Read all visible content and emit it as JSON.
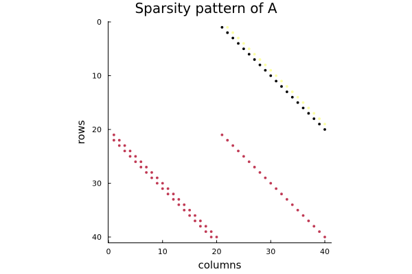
{
  "chart_data": {
    "type": "scatter",
    "title": "Sparsity pattern of A",
    "xlabel": "columns",
    "ylabel": "rows",
    "xlim": [
      0,
      41
    ],
    "ylim": [
      41,
      0
    ],
    "y_inverted": true,
    "xticks": [
      0,
      10,
      20,
      30,
      40
    ],
    "yticks": [
      0,
      10,
      20,
      30,
      40
    ],
    "grid": false,
    "legend": null,
    "series": [
      {
        "name": "block-upper-right-diagonal",
        "color": "#000000",
        "description": "entries (k, 20+k) for k = 1..20",
        "points": [
          [
            1,
            21
          ],
          [
            2,
            22
          ],
          [
            3,
            23
          ],
          [
            4,
            24
          ],
          [
            5,
            25
          ],
          [
            6,
            26
          ],
          [
            7,
            27
          ],
          [
            8,
            28
          ],
          [
            9,
            29
          ],
          [
            10,
            30
          ],
          [
            11,
            31
          ],
          [
            12,
            32
          ],
          [
            13,
            33
          ],
          [
            14,
            34
          ],
          [
            15,
            35
          ],
          [
            16,
            36
          ],
          [
            17,
            37
          ],
          [
            18,
            38
          ],
          [
            19,
            39
          ],
          [
            20,
            40
          ]
        ]
      },
      {
        "name": "block-upper-right-superdiagonal",
        "color": "#fcffa4",
        "description": "entries (k, 21+k) for k = 1..19",
        "points": [
          [
            1,
            22
          ],
          [
            2,
            23
          ],
          [
            3,
            24
          ],
          [
            4,
            25
          ],
          [
            5,
            26
          ],
          [
            6,
            27
          ],
          [
            7,
            28
          ],
          [
            8,
            29
          ],
          [
            9,
            30
          ],
          [
            10,
            31
          ],
          [
            11,
            32
          ],
          [
            12,
            33
          ],
          [
            13,
            34
          ],
          [
            14,
            35
          ],
          [
            15,
            36
          ],
          [
            16,
            37
          ],
          [
            17,
            38
          ],
          [
            18,
            39
          ],
          [
            19,
            40
          ]
        ]
      },
      {
        "name": "block-lower-left-bidiagonal",
        "color": "#c03a55",
        "description": "entries (20+k, k) for k = 1..20 and (21+k, k) for k = 1..19",
        "points": [
          [
            21,
            1
          ],
          [
            22,
            1
          ],
          [
            22,
            2
          ],
          [
            23,
            2
          ],
          [
            23,
            3
          ],
          [
            24,
            3
          ],
          [
            24,
            4
          ],
          [
            25,
            4
          ],
          [
            25,
            5
          ],
          [
            26,
            5
          ],
          [
            26,
            6
          ],
          [
            27,
            6
          ],
          [
            27,
            7
          ],
          [
            28,
            7
          ],
          [
            28,
            8
          ],
          [
            29,
            8
          ],
          [
            29,
            9
          ],
          [
            30,
            9
          ],
          [
            30,
            10
          ],
          [
            31,
            10
          ],
          [
            31,
            11
          ],
          [
            32,
            11
          ],
          [
            32,
            12
          ],
          [
            33,
            12
          ],
          [
            33,
            13
          ],
          [
            34,
            13
          ],
          [
            34,
            14
          ],
          [
            35,
            14
          ],
          [
            35,
            15
          ],
          [
            36,
            15
          ],
          [
            36,
            16
          ],
          [
            37,
            16
          ],
          [
            37,
            17
          ],
          [
            38,
            17
          ],
          [
            38,
            18
          ],
          [
            39,
            18
          ],
          [
            39,
            19
          ],
          [
            40,
            19
          ],
          [
            40,
            20
          ]
        ]
      },
      {
        "name": "block-lower-right-diagonal",
        "color": "#c03a55",
        "description": "entries (20+k, 20+k) for k = 1..20",
        "points": [
          [
            21,
            21
          ],
          [
            22,
            22
          ],
          [
            23,
            23
          ],
          [
            24,
            24
          ],
          [
            25,
            25
          ],
          [
            26,
            26
          ],
          [
            27,
            27
          ],
          [
            28,
            28
          ],
          [
            29,
            29
          ],
          [
            30,
            30
          ],
          [
            31,
            31
          ],
          [
            32,
            32
          ],
          [
            33,
            33
          ],
          [
            34,
            34
          ],
          [
            35,
            35
          ],
          [
            36,
            36
          ],
          [
            37,
            37
          ],
          [
            38,
            38
          ],
          [
            39,
            39
          ],
          [
            40,
            40
          ]
        ]
      }
    ],
    "point_format": "[row, column]"
  },
  "axes": {
    "x_tick_labels": [
      "0",
      "10",
      "20",
      "30",
      "40"
    ],
    "y_tick_labels": [
      "0",
      "10",
      "20",
      "30",
      "40"
    ]
  }
}
